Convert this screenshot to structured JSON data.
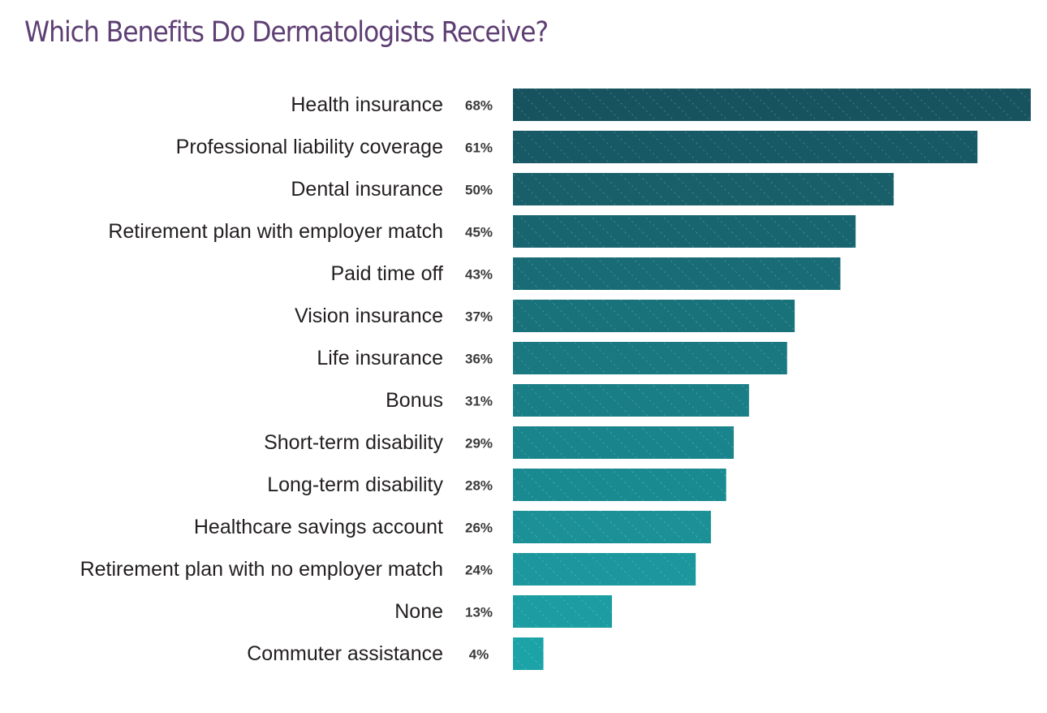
{
  "colors": {
    "title": "#5e3f73",
    "bar_dark": "#17535e",
    "bar_light": "#1ca3a8",
    "label": "#231f20",
    "value": "#3a3a3a"
  },
  "chart_data": {
    "type": "bar",
    "orientation": "horizontal",
    "title": "Which Benefits Do Dermatologists Receive?",
    "xlabel": "",
    "ylabel": "",
    "xlim": [
      0,
      68
    ],
    "grid": false,
    "legend": "none",
    "categories": [
      "Health insurance",
      "Professional liability coverage",
      "Dental insurance",
      "Retirement plan with employer match",
      "Paid time off",
      "Vision insurance",
      "Life insurance",
      "Bonus",
      "Short-term disability",
      "Long-term disability",
      "Healthcare savings account",
      "Retirement plan with no employer match",
      "None",
      "Commuter assistance"
    ],
    "values": [
      68,
      61,
      50,
      45,
      43,
      37,
      36,
      31,
      29,
      28,
      26,
      24,
      13,
      4
    ],
    "value_labels": [
      "68%",
      "61%",
      "50%",
      "45%",
      "43%",
      "37%",
      "36%",
      "31%",
      "29%",
      "28%",
      "26%",
      "24%",
      "13%",
      "4%"
    ]
  }
}
